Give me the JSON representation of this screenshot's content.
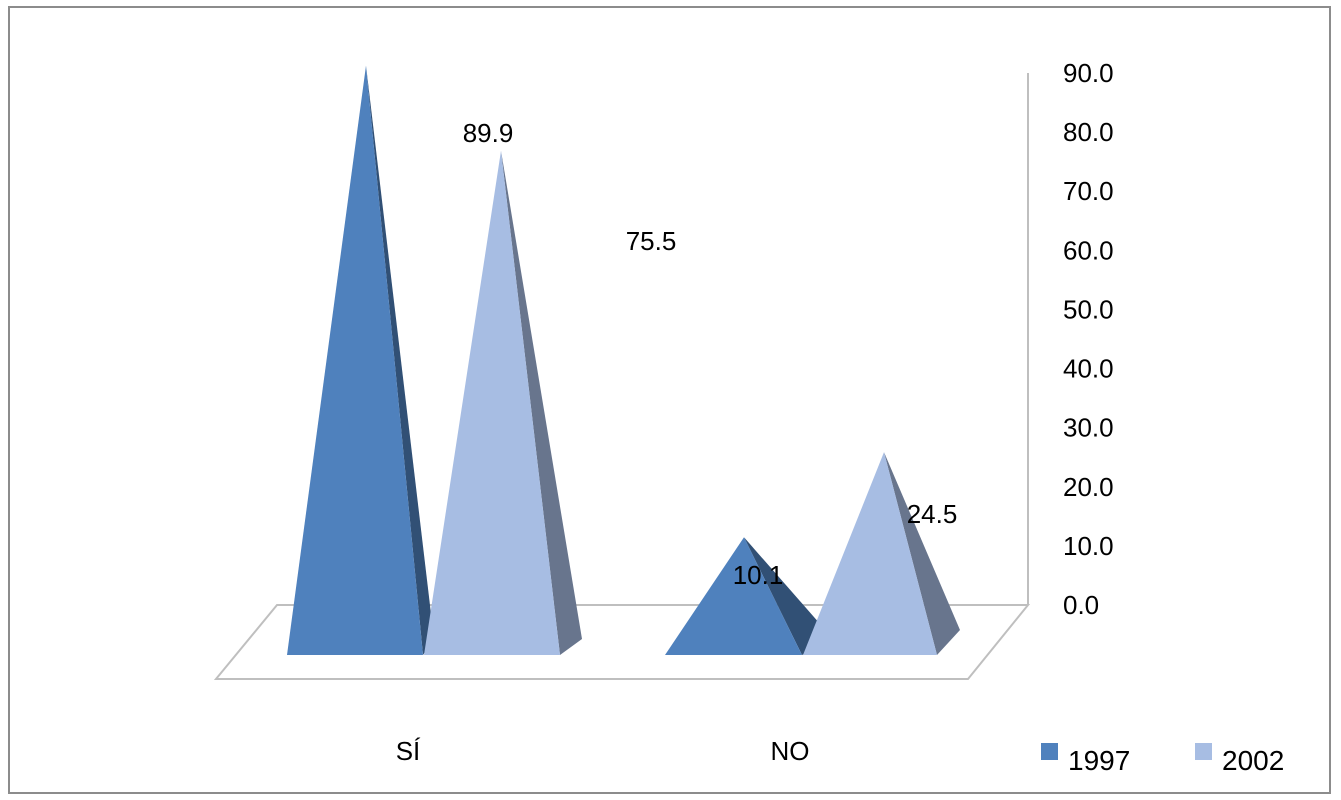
{
  "chart_data": {
    "type": "bar",
    "shape": "pyramid-3d",
    "categories": [
      "SÍ",
      "NO"
    ],
    "series": [
      {
        "name": "1997",
        "values": [
          89.9,
          10.1
        ],
        "color": "#4f81bd"
      },
      {
        "name": "2002",
        "values": [
          75.5,
          24.5
        ],
        "color": "#a7bde3"
      }
    ],
    "data_labels": [
      "89.9",
      "75.5",
      "10.1",
      "24.5"
    ],
    "yticks": [
      "0.0",
      "10.0",
      "20.0",
      "30.0",
      "40.0",
      "50.0",
      "60.0",
      "70.0",
      "80.0",
      "90.0"
    ],
    "ylim": [
      0,
      90
    ],
    "axis_position": "right",
    "legend_position": "bottom-right",
    "title": "",
    "xlabel": "",
    "ylabel": ""
  }
}
